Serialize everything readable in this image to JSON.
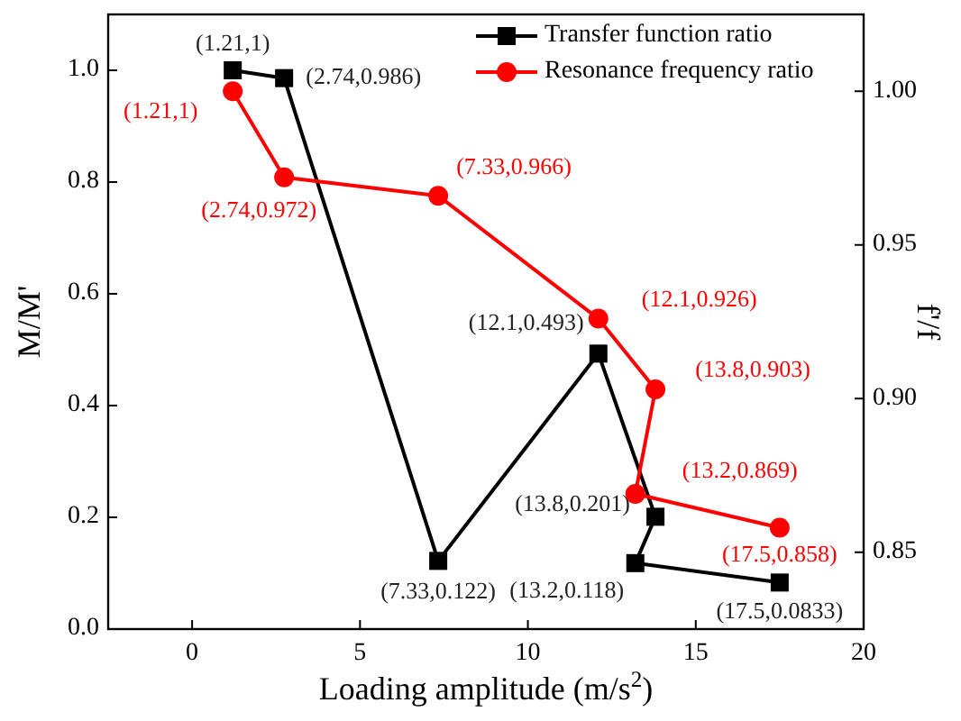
{
  "chart_data": {
    "type": "line",
    "xlabel": "Loading amplitude (m/s$^{2}$)",
    "ylabel": "M/M'",
    "y2label": "f'/f",
    "xlim": [
      -2.5,
      20
    ],
    "xticks": [
      0,
      5,
      10,
      15,
      20
    ],
    "ylim": [
      0,
      1.1
    ],
    "yticks": [
      {
        "value": 0,
        "label": "0.0"
      },
      {
        "value": 0.2,
        "label": "0.2"
      },
      {
        "value": 0.4,
        "label": "0.4"
      },
      {
        "value": 0.6,
        "label": "0.6"
      },
      {
        "value": 0.8,
        "label": "0.8"
      },
      {
        "value": 1,
        "label": "1.0"
      }
    ],
    "y2lim": [
      0.825,
      1.025
    ],
    "y2ticks": [
      {
        "value": 0.85,
        "label": "0.85"
      },
      {
        "value": 0.9,
        "label": "0.90"
      },
      {
        "value": 0.95,
        "label": "0.95"
      },
      {
        "value": 1,
        "label": "1.00"
      }
    ],
    "legend": "top right",
    "grid": false,
    "series": [
      {
        "name": "Transfer function ratio",
        "color": "#000000",
        "marker": "square",
        "x": [
          1.21,
          2.74,
          7.33,
          12.1,
          13.8,
          13.2,
          17.5
        ],
        "values": [
          1,
          0.986,
          0.122,
          0.493,
          0.201,
          0.118,
          0.0833
        ],
        "value_labels": [
          "(1.21,1)",
          "(2.74,0.986)",
          "(7.33,0.122)",
          "(12.1,0.493)",
          "(13.8,0.201)",
          "(13.2,0.118)",
          "(17.5,0.0833)"
        ]
      },
      {
        "name": "Resonance frequency ratio",
        "color": "#ff0000",
        "marker": "circle",
        "axis": "y2",
        "x": [
          1.21,
          2.74,
          7.33,
          12.1,
          13.8,
          13.2,
          17.5
        ],
        "values": [
          1,
          0.972,
          0.966,
          0.926,
          0.903,
          0.869,
          0.858
        ],
        "value_labels": [
          "(1.21,1)",
          "(2.74,0.972)",
          "(7.33,0.966)",
          "(12.1,0.926)",
          "(13.8,0.903)",
          "(13.2,0.869)",
          "(17.5,0.858)"
        ]
      }
    ]
  }
}
